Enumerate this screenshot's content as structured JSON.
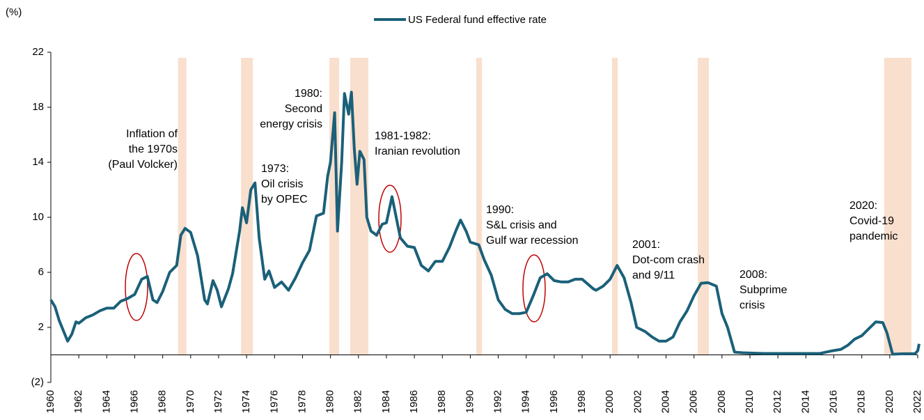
{
  "chart_data": {
    "type": "line",
    "y_axis_label": "(%)",
    "xlim": [
      1960,
      2022
    ],
    "xticks": [
      1960,
      1962,
      1964,
      1966,
      1968,
      1970,
      1972,
      1974,
      1976,
      1978,
      1980,
      1982,
      1984,
      1986,
      1988,
      1990,
      1992,
      1994,
      1996,
      1998,
      2000,
      2002,
      2004,
      2006,
      2008,
      2010,
      2012,
      2014,
      2016,
      2018,
      2020,
      2022
    ],
    "ylim": [
      -2,
      22
    ],
    "yticks": [
      {
        "value": -2,
        "label": "(2)"
      },
      2,
      6,
      10,
      14,
      18,
      22
    ],
    "legend": "top",
    "shaded_periods": [
      [
        1969.1,
        1969.7
      ],
      [
        1973.6,
        1974.45
      ],
      [
        1979.92,
        1980.62
      ],
      [
        1981.41,
        1982.71
      ],
      [
        1990.43,
        1990.83
      ],
      [
        2000.14,
        2000.54
      ],
      [
        2006.27,
        2007.06
      ],
      [
        2019.6,
        2021.55
      ]
    ],
    "shade_color": "#f8d9c4",
    "series": [
      {
        "name": "US Federal fund effective rate",
        "color": "#1b6079",
        "x": [
          1960.0,
          1960.3,
          1960.6,
          1961.0,
          1961.2,
          1961.5,
          1961.8,
          1962.0,
          1962.5,
          1963.0,
          1963.5,
          1964.0,
          1964.5,
          1965.0,
          1965.5,
          1966.0,
          1966.5,
          1966.9,
          1967.3,
          1967.6,
          1968.0,
          1968.5,
          1969.0,
          1969.3,
          1969.6,
          1970.0,
          1970.5,
          1971.0,
          1971.2,
          1971.6,
          1971.9,
          1972.2,
          1972.7,
          1973.0,
          1973.5,
          1973.7,
          1974.0,
          1974.3,
          1974.6,
          1974.9,
          1975.3,
          1975.6,
          1976.0,
          1976.5,
          1977.0,
          1977.5,
          1978.0,
          1978.5,
          1979.0,
          1979.5,
          1979.8,
          1980.0,
          1980.3,
          1980.5,
          1980.8,
          1981.0,
          1981.3,
          1981.5,
          1981.7,
          1981.9,
          1982.1,
          1982.4,
          1982.6,
          1982.9,
          1983.3,
          1983.7,
          1984.0,
          1984.4,
          1984.7,
          1985.0,
          1985.5,
          1986.0,
          1986.5,
          1987.0,
          1987.5,
          1988.0,
          1988.5,
          1989.0,
          1989.3,
          1989.7,
          1990.0,
          1990.6,
          1991.0,
          1991.5,
          1992.0,
          1992.5,
          1993.0,
          1993.5,
          1994.0,
          1994.5,
          1995.0,
          1995.5,
          1996.0,
          1996.5,
          1997.0,
          1997.5,
          1998.0,
          1998.8,
          1999.0,
          1999.5,
          2000.0,
          2000.5,
          2001.0,
          2001.5,
          2001.9,
          2002.5,
          2003.0,
          2003.5,
          2004.0,
          2004.5,
          2005.0,
          2005.5,
          2006.0,
          2006.5,
          2007.0,
          2007.6,
          2008.0,
          2008.4,
          2008.9,
          2009.5,
          2011.0,
          2013.0,
          2015.0,
          2015.9,
          2016.5,
          2017.0,
          2017.5,
          2018.0,
          2018.5,
          2019.0,
          2019.5,
          2019.8,
          2020.2,
          2021.0,
          2021.8,
          2022.0,
          2022.1
        ],
        "values": [
          4.0,
          3.5,
          2.5,
          1.5,
          1.0,
          1.5,
          2.4,
          2.3,
          2.7,
          2.9,
          3.2,
          3.4,
          3.4,
          3.9,
          4.1,
          4.4,
          5.5,
          5.7,
          4.0,
          3.8,
          4.6,
          6.0,
          6.5,
          8.7,
          9.2,
          8.9,
          7.2,
          4.0,
          3.7,
          5.4,
          4.7,
          3.5,
          4.8,
          5.9,
          9.0,
          10.7,
          9.6,
          12.0,
          12.5,
          8.5,
          5.5,
          6.1,
          4.9,
          5.3,
          4.7,
          5.6,
          6.7,
          7.6,
          10.1,
          10.3,
          13.0,
          14.0,
          17.6,
          9.0,
          14.0,
          19.0,
          17.5,
          19.1,
          15.0,
          12.4,
          14.8,
          14.2,
          10.0,
          9.0,
          8.7,
          9.5,
          9.6,
          11.5,
          10.0,
          8.5,
          7.9,
          7.8,
          6.5,
          6.1,
          6.8,
          6.8,
          7.8,
          9.1,
          9.8,
          9.0,
          8.2,
          8.0,
          6.9,
          5.8,
          4.0,
          3.3,
          3.0,
          3.0,
          3.1,
          4.3,
          5.6,
          5.9,
          5.4,
          5.3,
          5.3,
          5.5,
          5.5,
          4.8,
          4.7,
          5.0,
          5.5,
          6.5,
          5.6,
          3.8,
          2.0,
          1.7,
          1.3,
          1.0,
          1.0,
          1.3,
          2.4,
          3.2,
          4.3,
          5.2,
          5.25,
          5.0,
          3.0,
          2.0,
          0.2,
          0.15,
          0.1,
          0.1,
          0.1,
          0.3,
          0.4,
          0.7,
          1.15,
          1.4,
          1.9,
          2.4,
          2.35,
          1.6,
          0.05,
          0.08,
          0.08,
          0.3,
          0.8
        ]
      }
    ],
    "annotations": [
      [
        "Inflation of",
        "the 1970s",
        "(Paul Volcker)"
      ],
      [
        "1973:",
        "Oil crisis",
        "by OPEC"
      ],
      [
        "1980:",
        "Second",
        "energy crisis"
      ],
      [
        "1981-1982:",
        "Iranian revolution"
      ],
      [
        "1990:",
        "S&L crisis and",
        "Gulf war recession"
      ],
      [
        "2001:",
        "Dot-com crash",
        "and 9/11"
      ],
      [
        "2008:",
        "Subprime",
        "crisis"
      ],
      [
        "2020:",
        "Covid-19",
        "pandemic"
      ]
    ]
  }
}
